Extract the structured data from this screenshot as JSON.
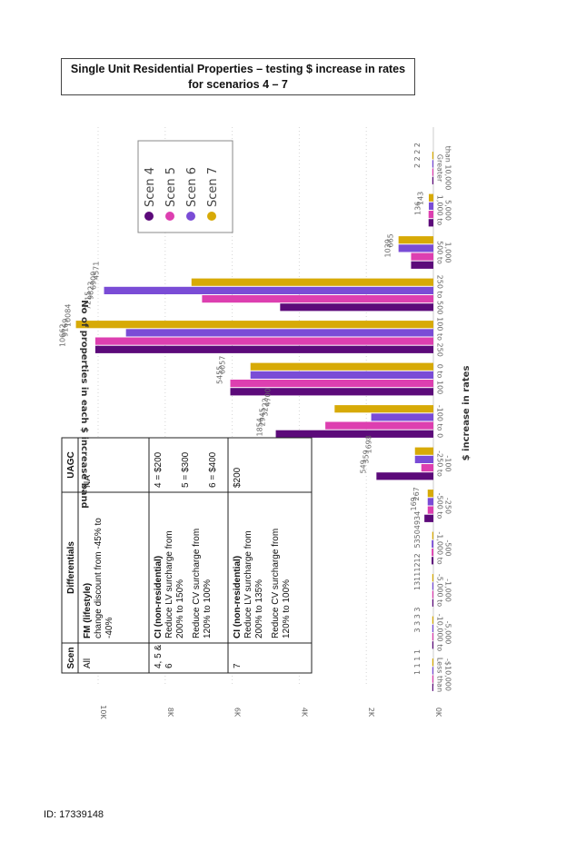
{
  "title": "Single Unit Residential Properties – testing $ increase in rates for scenarios 4 – 7",
  "id_label": "ID: 17339148",
  "colors": {
    "scen4": "#5c0a7a",
    "scen5": "#dd3fb0",
    "scen6": "#7a4cd6",
    "scen7": "#d7aa07"
  },
  "chart_data": {
    "type": "bar",
    "xlabel": "$ increase in rates",
    "ylabel": "No of properties in each $ increase band",
    "yticks": [
      "0K",
      "2K",
      "4K",
      "6K",
      "8K",
      "10K"
    ],
    "ylim": [
      0,
      10800
    ],
    "categories": [
      [
        "Less than",
        "-$10,000"
      ],
      [
        "-10,000 to",
        "-5,000"
      ],
      [
        "-5,000 to",
        "-1,000"
      ],
      [
        "-1,000 to",
        "-500"
      ],
      [
        "-500 to",
        "-250"
      ],
      [
        "-250 to",
        "-100"
      ],
      [
        "-100 to 0"
      ],
      [
        "0 to 100"
      ],
      [
        "100 to 250"
      ],
      [
        "250 to 500"
      ],
      [
        "500 to",
        "1,000"
      ],
      [
        "1,000 to",
        "5,000"
      ],
      [
        "Greater",
        "than 10,000"
      ]
    ],
    "series": [
      {
        "name": "Scen 4",
        "color": "#5c0a7a",
        "values": [
          1,
          3,
          13,
          53,
          267,
          1698,
          4700,
          6057,
          10084,
          4571,
          665,
          143,
          2
        ]
      },
      {
        "name": "Scen 5",
        "color": "#dd3fb0",
        "values": [
          1,
          3,
          11,
          50,
          169,
          359,
          3222,
          6057,
          10084,
          6900,
          665,
          143,
          2
        ]
      },
      {
        "name": "Scen 6",
        "color": "#7a4cd6",
        "values": [
          1,
          3,
          12,
          49,
          169,
          549,
          1854,
          5455,
          9169,
          9823,
          1039,
          136,
          2
        ]
      },
      {
        "name": "Scen 7",
        "color": "#d7aa07",
        "values": [
          1,
          3,
          12,
          34,
          169,
          549,
          2945,
          5455,
          10662,
          7215,
          1039,
          136,
          2
        ]
      }
    ],
    "value_labels": [
      {
        "cat": 0,
        "text": "1 1 1 1"
      },
      {
        "cat": 1,
        "text": "3 3 3 3"
      },
      {
        "cat": 2,
        "text": "13111212"
      },
      {
        "cat": 3,
        "text": "53504934"
      },
      {
        "cat": 4,
        "text": "267"
      },
      {
        "cat": 4,
        "text": "169"
      },
      {
        "cat": 5,
        "text": "1698"
      },
      {
        "cat": 5,
        "text": "359"
      },
      {
        "cat": 5,
        "text": "549"
      },
      {
        "cat": 6,
        "text": "4700"
      },
      {
        "cat": 6,
        "text": "3222"
      },
      {
        "cat": 6,
        "text": "2945"
      },
      {
        "cat": 6,
        "text": "1854"
      },
      {
        "cat": 7,
        "text": "6057"
      },
      {
        "cat": 7,
        "text": "5455"
      },
      {
        "cat": 8,
        "text": "10084"
      },
      {
        "cat": 8,
        "text": "9169"
      },
      {
        "cat": 8,
        "text": "10662"
      },
      {
        "cat": 9,
        "text": "4571"
      },
      {
        "cat": 9,
        "text": "6900"
      },
      {
        "cat": 9,
        "text": "9823"
      },
      {
        "cat": 9,
        "text": "7215"
      },
      {
        "cat": 10,
        "text": "665"
      },
      {
        "cat": 10,
        "text": "1039"
      },
      {
        "cat": 11,
        "text": "143"
      },
      {
        "cat": 11,
        "text": "136"
      },
      {
        "cat": 12,
        "text": "2 2 2 2"
      }
    ],
    "legend": {
      "placement": "top-right",
      "items": [
        "Scen 4",
        "Scen 5",
        "Scen 6",
        "Scen 7"
      ]
    },
    "grid": true
  },
  "table": {
    "headers": [
      "Scen",
      "Differentials",
      "UAGC"
    ],
    "rows": [
      {
        "scen": "All",
        "diff_title": "FM (lifestyle)",
        "diff_lines": [
          "change discount from -45% to",
          "-40%"
        ],
        "uagc": [
          "NA"
        ]
      },
      {
        "scen": "4, 5 & 6",
        "diff_title": "CI (non-residential)",
        "diff_lines": [
          "Reduce LV surcharge from",
          "200% to 150%",
          "Reduce CV surcharge from",
          "120% to 100%"
        ],
        "uagc": [
          "4 = $200",
          "5 = $300",
          "6 = $400"
        ]
      },
      {
        "scen": "7",
        "diff_title": "CI (non-residential)",
        "diff_lines": [
          "Reduce LV surcharge from",
          "200% to 135%",
          "Reduce CV surcharge from",
          "120% to 100%"
        ],
        "uagc": [
          "$200"
        ]
      }
    ]
  }
}
